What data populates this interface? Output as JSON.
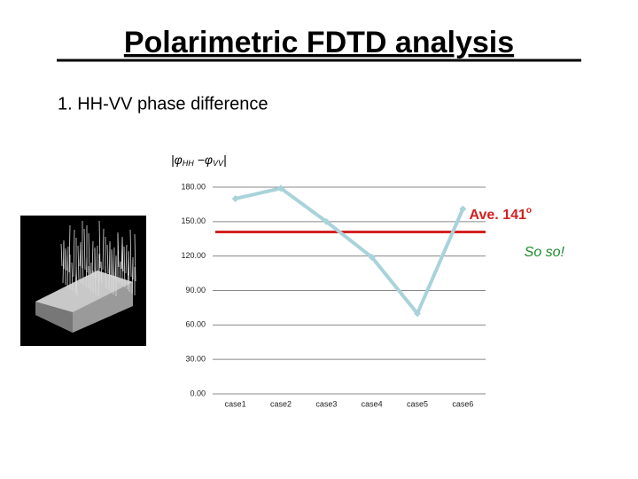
{
  "title": "Polarimetric FDTD analysis",
  "subtitle": "1. HH-VV phase difference",
  "chart_data": {
    "type": "line",
    "ylabel_parts": [
      "|φ",
      "HH",
      " −φ",
      "VV",
      "|"
    ],
    "categories": [
      "case1",
      "case2",
      "case3",
      "case4",
      "case5",
      "case6"
    ],
    "values": [
      170,
      179,
      150,
      119,
      70,
      161
    ],
    "color": "#a9d3da",
    "ylim": [
      0,
      180
    ],
    "yticks": [
      {
        "value": 0,
        "label": "0.00"
      },
      {
        "value": 30,
        "label": "30.00"
      },
      {
        "value": 60,
        "label": "60.00"
      },
      {
        "value": 90,
        "label": "90.00"
      },
      {
        "value": 120,
        "label": "120.00"
      },
      {
        "value": 150,
        "label": "150.00"
      },
      {
        "value": 180,
        "label": "180.00"
      }
    ],
    "grid": true,
    "average": {
      "value": 141,
      "label": "Ave. 141",
      "label_sup": "o",
      "color": "#d42020"
    },
    "comment": {
      "text": "So so!",
      "color": "#1a8a2a"
    }
  }
}
